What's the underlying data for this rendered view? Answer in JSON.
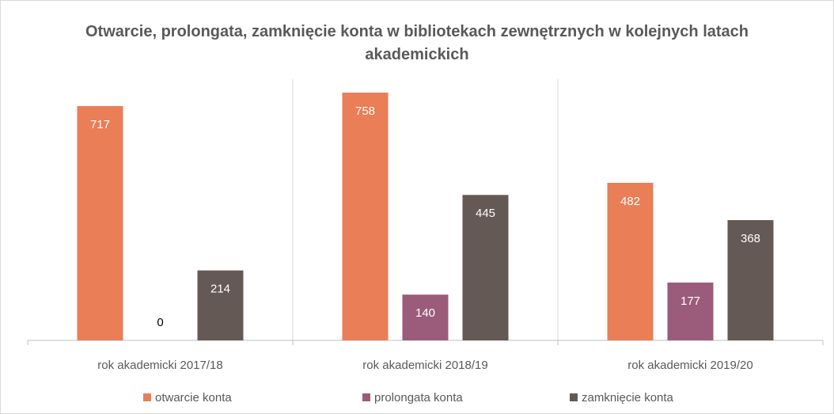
{
  "chart_data": {
    "type": "bar",
    "title": "Otwarcie, prolongata, zamknięcie konta w bibliotekach zewnętrznych w kolejnych latach akademickich",
    "categories": [
      "rok akademicki 2017/18",
      "rok akademicki 2018/19",
      "rok akademicki 2019/20"
    ],
    "series": [
      {
        "name": "otwarcie konta",
        "color": "#e97e57",
        "values": [
          717,
          758,
          482
        ]
      },
      {
        "name": "prolongata konta",
        "color": "#9b5b7a",
        "values": [
          0,
          140,
          177
        ]
      },
      {
        "name": "zamknięcie konta",
        "color": "#655955",
        "values": [
          214,
          445,
          368
        ]
      }
    ],
    "legend": "bottom"
  }
}
